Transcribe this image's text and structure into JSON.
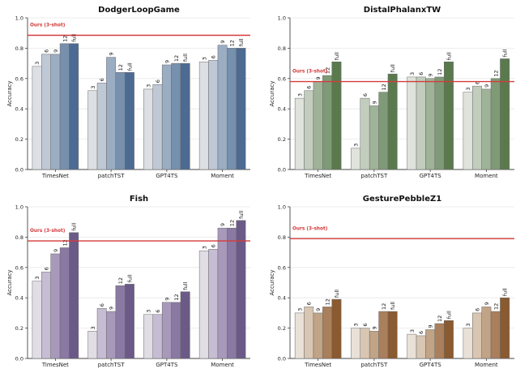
{
  "chart_data": [
    {
      "type": "bar",
      "title": "DodgerLoopGame",
      "ylabel": "Accuracy",
      "ylim": [
        0,
        1.0
      ],
      "yticks": [
        "0.0",
        "0.2",
        "0.4",
        "0.6",
        "0.8",
        "1.0"
      ],
      "categories": [
        "TimesNet",
        "patchTST",
        "GPT4TS",
        "Moment"
      ],
      "series": [
        {
          "name": "3",
          "values": [
            0.68,
            0.52,
            0.53,
            0.71
          ]
        },
        {
          "name": "6",
          "values": [
            0.76,
            0.57,
            0.56,
            0.72
          ]
        },
        {
          "name": "9",
          "values": [
            0.76,
            0.74,
            0.69,
            0.82
          ]
        },
        {
          "name": "12",
          "values": [
            0.83,
            0.64,
            0.7,
            0.8
          ]
        },
        {
          "name": "full",
          "values": [
            0.83,
            0.64,
            0.7,
            0.8
          ]
        }
      ],
      "reference_line": {
        "label": "Ours (3-shot)",
        "value": 0.885
      },
      "colors": [
        "#dcdfe3",
        "#bfc9d6",
        "#9aadc2",
        "#7690ad",
        "#4d6b92"
      ]
    },
    {
      "type": "bar",
      "title": "DistalPhalanxTW",
      "ylabel": "Accuracy",
      "ylim": [
        0,
        1.0
      ],
      "yticks": [
        "0.0",
        "0.2",
        "0.4",
        "0.6",
        "0.8",
        "1.0"
      ],
      "categories": [
        "TimesNet",
        "patchTST",
        "GPT4TS",
        "Moment"
      ],
      "series": [
        {
          "name": "3",
          "values": [
            0.47,
            0.14,
            0.61,
            0.51
          ]
        },
        {
          "name": "6",
          "values": [
            0.52,
            0.47,
            0.61,
            0.55
          ]
        },
        {
          "name": "9",
          "values": [
            0.58,
            0.42,
            0.6,
            0.53
          ]
        },
        {
          "name": "12",
          "values": [
            0.62,
            0.51,
            0.61,
            0.6
          ]
        },
        {
          "name": "full",
          "values": [
            0.71,
            0.63,
            0.71,
            0.73
          ]
        }
      ],
      "reference_line": {
        "label": "Ours (3-shot)",
        "value": 0.58
      },
      "colors": [
        "#dfe3dc",
        "#c2cdbd",
        "#9fb398",
        "#7f9a76",
        "#5a7a4e"
      ]
    },
    {
      "type": "bar",
      "title": "Fish",
      "ylabel": "Accuracy",
      "ylim": [
        0,
        1.0
      ],
      "yticks": [
        "0.0",
        "0.2",
        "0.4",
        "0.6",
        "0.8",
        "1.0"
      ],
      "categories": [
        "TimesNet",
        "patchTST",
        "GPT4TS",
        "Moment"
      ],
      "series": [
        {
          "name": "3",
          "values": [
            0.51,
            0.18,
            0.29,
            0.71
          ]
        },
        {
          "name": "6",
          "values": [
            0.57,
            0.33,
            0.29,
            0.72
          ]
        },
        {
          "name": "9",
          "values": [
            0.69,
            0.31,
            0.37,
            0.86
          ]
        },
        {
          "name": "12",
          "values": [
            0.73,
            0.48,
            0.37,
            0.86
          ]
        },
        {
          "name": "full",
          "values": [
            0.83,
            0.49,
            0.44,
            0.91
          ]
        }
      ],
      "reference_line": {
        "label": "Ours (3-shot)",
        "value": 0.775
      },
      "colors": [
        "#e0dde5",
        "#c6bcd3",
        "#a899bb",
        "#8a79a3",
        "#6b5a87"
      ]
    },
    {
      "type": "bar",
      "title": "GesturePebbleZ1",
      "ylabel": "Accuracy",
      "ylim": [
        0,
        1.0
      ],
      "yticks": [
        "0.0",
        "0.2",
        "0.4",
        "0.6",
        "0.8",
        "1.0"
      ],
      "categories": [
        "TimesNet",
        "patchTST",
        "GPT4TS",
        "Moment"
      ],
      "series": [
        {
          "name": "3",
          "values": [
            0.3,
            0.2,
            0.16,
            0.2
          ]
        },
        {
          "name": "6",
          "values": [
            0.34,
            0.2,
            0.15,
            0.3
          ]
        },
        {
          "name": "9",
          "values": [
            0.3,
            0.18,
            0.19,
            0.34
          ]
        },
        {
          "name": "12",
          "values": [
            0.34,
            0.31,
            0.23,
            0.31
          ]
        },
        {
          "name": "full",
          "values": [
            0.39,
            0.31,
            0.25,
            0.4
          ]
        }
      ],
      "reference_line": {
        "label": "Ours (3-shot)",
        "value": 0.79
      },
      "colors": [
        "#e9e1d8",
        "#d8c6b2",
        "#c1a386",
        "#a97f5c",
        "#8a5a30"
      ]
    }
  ],
  "style": {
    "reference_color": "#d43a3a",
    "axis_color": "#444444",
    "grid": true
  }
}
